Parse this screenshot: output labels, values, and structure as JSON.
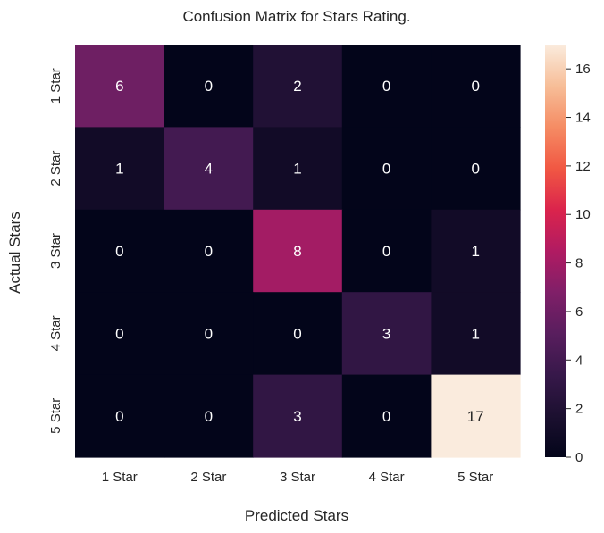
{
  "chart_data": {
    "type": "heatmap",
    "title": "Confusion Matrix for Stars Rating.",
    "xlabel": "Predicted Stars",
    "ylabel": "Actual Stars",
    "x_categories": [
      "1 Star",
      "2 Star",
      "3 Star",
      "4 Star",
      "5 Star"
    ],
    "y_categories": [
      "1 Star",
      "2 Star",
      "3 Star",
      "4 Star",
      "5 Star"
    ],
    "values": [
      [
        6,
        0,
        2,
        0,
        0
      ],
      [
        1,
        4,
        1,
        0,
        0
      ],
      [
        0,
        0,
        8,
        0,
        1
      ],
      [
        0,
        0,
        0,
        3,
        1
      ],
      [
        0,
        0,
        3,
        0,
        17
      ]
    ],
    "colorbar": {
      "min": 0,
      "max": 17,
      "ticks": [
        0,
        2,
        4,
        6,
        8,
        10,
        12,
        14,
        16
      ]
    },
    "colormap": "rocket",
    "grid": false
  }
}
